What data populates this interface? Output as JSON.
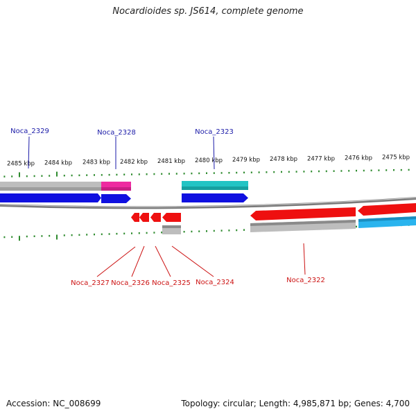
{
  "title": "Nocardioides sp. JS614, complete genome",
  "footer": {
    "accession": "Accession: NC_008699",
    "summary": "Topology: circular; Length: 4,985,871 bp; Genes: 4,700"
  },
  "colors": {
    "forward_gene": "#1010e0",
    "reverse_gene": "#ee1010",
    "forward_label": "#1a1aa8",
    "reverse_label": "#cc1111",
    "tick": "#2e8b2e",
    "backbone": "#8a8a8a",
    "feature_gray": "#b8b8b8",
    "feature_pink": "#ee2aa0",
    "feature_teal": "#22c4c4",
    "feature_sky": "#2ab4ee"
  },
  "scale_labels": [
    "2485 kbp",
    "2484 kbp",
    "2483 kbp",
    "2482 kbp",
    "2481 kbp",
    "2480 kbp",
    "2479 kbp",
    "2478 kbp",
    "2477 kbp",
    "2476 kbp",
    "2475 kbp"
  ],
  "forward_genes": [
    "Noca_2329",
    "Noca_2328",
    "Noca_2323"
  ],
  "reverse_genes": [
    "Noca_2327",
    "Noca_2326",
    "Noca_2325",
    "Noca_2324",
    "Noca_2322"
  ]
}
